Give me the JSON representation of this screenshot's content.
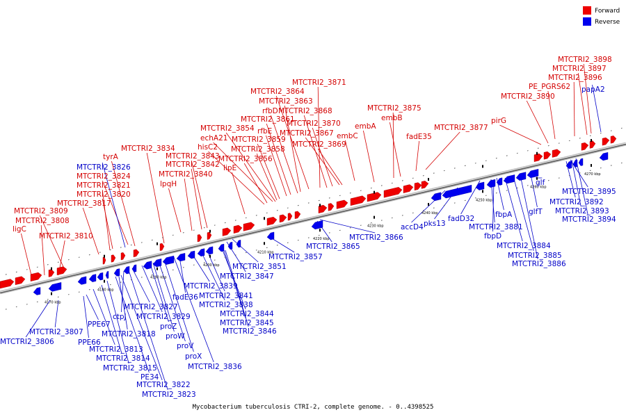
{
  "caption": "Mycobacterium tuberculosis CTRI-2, complete genome. - 0..4398525",
  "legend": [
    {
      "label": "Forward",
      "color": "#ee0000"
    },
    {
      "label": "Reverse",
      "color": "#0000ee"
    }
  ],
  "colors": {
    "forward": "#ee0000",
    "reverse": "#0000ee",
    "label_forward": "#d40000",
    "label_reverse": "#0000c8"
  },
  "scale_ticks": [
    "4170 kbp",
    "4180 kbp",
    "4190 kbp",
    "4200 kbp",
    "4210 kbp",
    "4220 kbp",
    "4230 kbp",
    "4240 kbp",
    "4250 kbp",
    "4260 kbp",
    "4270 kbp"
  ],
  "forward_labels": [
    "MTCTRI2_3871",
    "MTCTRI2_3864",
    "MTCTRI2_3863",
    "rfbD",
    "MTCTRI2_3868",
    "MTCTRI2_3861",
    "MTCTRI2_3870",
    "rfbE",
    "MTCTRI2_3867",
    "MTCTRI2_3854",
    "embC",
    "MTCTRI2_3869",
    "echA21",
    "MTCTRI2_3859",
    "hisC2",
    "MTCTRI2_3858",
    "MTCTRI2_3834",
    "MTCTRI2_3843",
    "MTCTRI2_3856",
    "tyrA",
    "MTCTRI2_3842",
    "lipE",
    "MTCTRI2_3824",
    "MTCTRI2_3840",
    "MTCTRI2_3821",
    "lpqH",
    "MTCTRI2_3820",
    "MTCTRI2_3817",
    "MTCTRI2_3809",
    "MTCTRI2_3808",
    "ligC",
    "MTCTRI2_3810",
    "MTCTRI2_3875",
    "embB",
    "embA",
    "fadE35",
    "MTCTRI2_3877",
    "pirG",
    "MTCTRI2_3890",
    "PE_PGRS62",
    "MTCTRI2_3896",
    "MTCTRI2_3897",
    "MTCTRI2_3898"
  ],
  "reverse_labels": [
    "MTCTRI2_3826",
    "papA2",
    "glf",
    "glfT",
    "MTCTRI2_3895",
    "MTCTRI2_3892",
    "MTCTRI2_3893",
    "MTCTRI2_3894",
    "accD4",
    "pks13",
    "fadD32",
    "fbpA",
    "MTCTRI2_3881",
    "fbpD",
    "MTCTRI2_3884",
    "MTCTRI2_3885",
    "MTCTRI2_3886",
    "MTCTRI2_3866",
    "MTCTRI2_3865",
    "MTCTRI2_3857",
    "MTCTRI2_3851",
    "MTCTRI2_3847",
    "MTCTRI2_3839",
    "fadE36",
    "MTCTRI2_3841",
    "MTCTRI2_3838",
    "MTCTRI2_3844",
    "MTCTRI2_3845",
    "MTCTRI2_3846",
    "MTCTRI2_3827",
    "ctpJ",
    "MTCTRI2_3829",
    "proZ",
    "proW",
    "MTCTRI2_3818",
    "proV",
    "proX",
    "MTCTRI2_3836",
    "MTCTRI2_3807",
    "MTCTRI2_3806",
    "PPE67",
    "PPE66",
    "MTCTRI2_3813",
    "MTCTRI2_3814",
    "MTCTRI2_3815",
    "PE34",
    "MTCTRI2_3822",
    "MTCTRI2_3823"
  ]
}
